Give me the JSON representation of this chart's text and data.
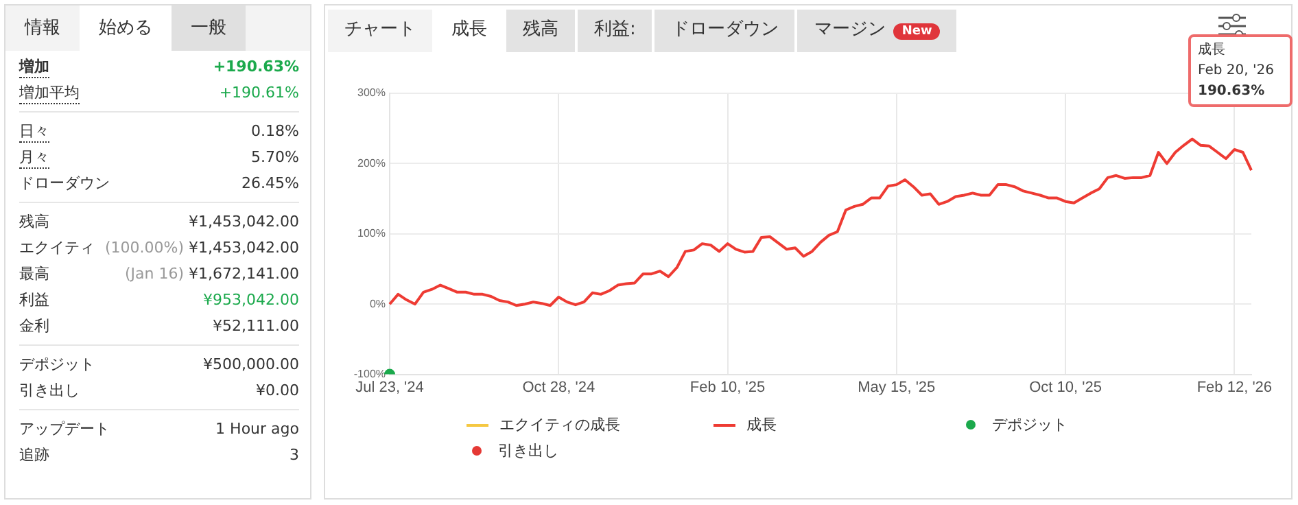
{
  "chart_data": [
    {
      "type": "other",
      "annotations": [
        "情報",
        "始める",
        "一般"
      ],
      "categories": [
        "増加",
        "増加平均",
        "日々",
        "月々",
        "ドローダウン",
        "残高",
        "エクイティ",
        "最高",
        "利益",
        "金利",
        "デポジット",
        "引き出し",
        "アップデート",
        "追跡"
      ],
      "value_labels": [
        "+190.63%",
        "+190.61%",
        "0.18%",
        "5.70%",
        "26.45%",
        "¥1,453,042.00",
        "(100.00%) ¥1,453,042.00",
        "(Jan 16) ¥1,672,141.00",
        "¥953,042.00",
        "¥52,111.00",
        "¥500,000.00",
        "¥0.00",
        "1 Hour ago",
        "3"
      ],
      "colors": [
        "#1ba94c",
        "#1ba94c",
        "#333333",
        "#333333",
        "#333333",
        "#333333",
        "#333333",
        "#333333",
        "#1ba94c",
        "#333333",
        "#333333",
        "#333333",
        "#333333",
        "#333333"
      ]
    },
    {
      "type": "other",
      "annotations": [
        "チャート",
        "成長",
        "残高",
        "利益:",
        "ドローダウン",
        "マージン",
        "New"
      ]
    },
    {
      "type": "line",
      "grid": true,
      "legend": "bottom",
      "annotations": [
        "成長",
        "Feb 20, '26",
        "190.63%"
      ],
      "categories": [
        "Jul 23, '24",
        null,
        null,
        null,
        null,
        null,
        null,
        null,
        null,
        null,
        null,
        null,
        null,
        null,
        null,
        null,
        null,
        null,
        null,
        null,
        "Oct 28, '24",
        null,
        null,
        null,
        null,
        null,
        null,
        null,
        null,
        null,
        null,
        null,
        null,
        null,
        null,
        null,
        null,
        null,
        null,
        null,
        "Feb 10, '25",
        null,
        null,
        null,
        null,
        null,
        null,
        null,
        null,
        null,
        null,
        null,
        null,
        null,
        null,
        null,
        null,
        null,
        null,
        null,
        "May 15, '25",
        null,
        null,
        null,
        null,
        null,
        null,
        null,
        null,
        null,
        null,
        null,
        null,
        null,
        null,
        null,
        null,
        null,
        null,
        null,
        "Oct 10, '25",
        null,
        null,
        null,
        null,
        null,
        null,
        null,
        null,
        null,
        null,
        null,
        null,
        null,
        null,
        null,
        null,
        null,
        null,
        null,
        "Feb 12, '26",
        null,
        null
      ],
      "ylim": [
        -100,
        300
      ],
      "yticks": [
        {
          "value": -100,
          "label": "-100%"
        },
        {
          "value": 0,
          "label": "0%"
        },
        {
          "value": 100,
          "label": "100%"
        },
        {
          "value": 200,
          "label": "200%"
        },
        {
          "value": 300,
          "label": "300%"
        }
      ],
      "series": [
        {
          "name": "エクイティの成長",
          "type": "line",
          "color": "#f5c842",
          "values": [
            null,
            null,
            null,
            null,
            null,
            null,
            null,
            null,
            null,
            null,
            null,
            null,
            null,
            null,
            null,
            null,
            null,
            null,
            null,
            null,
            null,
            null,
            null,
            null,
            null,
            null,
            null,
            null,
            null,
            null,
            null,
            null,
            null,
            null,
            null,
            null,
            null,
            null,
            null,
            null,
            null,
            null,
            null,
            null,
            null,
            null,
            null,
            null,
            null,
            null,
            null,
            null,
            null,
            null,
            null,
            null,
            null,
            null,
            null,
            null,
            null,
            null,
            null,
            null,
            null,
            null,
            null,
            null,
            null,
            null,
            null,
            null,
            null,
            null,
            null,
            null,
            null,
            null,
            null,
            null,
            null,
            null,
            null,
            null,
            null,
            null,
            null,
            null,
            null,
            null,
            null,
            null,
            null,
            null,
            null,
            null,
            null,
            null,
            null,
            null,
            null,
            null,
            null
          ]
        },
        {
          "name": "成長",
          "type": "line",
          "color": "#ee3b33",
          "values": [
            0,
            14,
            6,
            0,
            17,
            21,
            27,
            22,
            17,
            17,
            14,
            14,
            11,
            5,
            3,
            -2,
            0,
            3,
            1,
            -2,
            10,
            3,
            -1,
            3,
            16,
            14,
            19,
            27,
            29,
            30,
            43,
            43,
            47,
            39,
            52,
            75,
            77,
            86,
            84,
            75,
            86,
            78,
            74,
            75,
            95,
            96,
            87,
            78,
            80,
            68,
            75,
            88,
            98,
            103,
            134,
            139,
            142,
            151,
            151,
            168,
            170,
            177,
            167,
            155,
            157,
            142,
            146,
            153,
            155,
            158,
            155,
            155,
            170,
            170,
            167,
            161,
            158,
            155,
            151,
            151,
            146,
            144,
            151,
            158,
            164,
            180,
            183,
            179,
            180,
            180,
            183,
            216,
            200,
            216,
            226,
            235,
            226,
            225,
            216,
            207,
            220,
            216,
            190.6
          ]
        },
        {
          "name": "デポジット",
          "type": "scatter",
          "color": "#1ba94c",
          "values": [
            -100,
            null,
            null,
            null,
            null,
            null,
            null,
            null,
            null,
            null,
            null,
            null,
            null,
            null,
            null,
            null,
            null,
            null,
            null,
            null,
            null,
            null,
            null,
            null,
            null,
            null,
            null,
            null,
            null,
            null,
            null,
            null,
            null,
            null,
            null,
            null,
            null,
            null,
            null,
            null,
            null,
            null,
            null,
            null,
            null,
            null,
            null,
            null,
            null,
            null,
            null,
            null,
            null,
            null,
            null,
            null,
            null,
            null,
            null,
            null,
            null,
            null,
            null,
            null,
            null,
            null,
            null,
            null,
            null,
            null,
            null,
            null,
            null,
            null,
            null,
            null,
            null,
            null,
            null,
            null,
            null,
            null,
            null,
            null,
            null,
            null,
            null,
            null,
            null,
            null,
            null,
            null,
            null,
            null,
            null,
            null,
            null,
            null,
            null,
            null,
            null,
            null,
            null
          ]
        },
        {
          "name": "引き出し",
          "type": "scatter",
          "color": "#e53935",
          "values": [
            null,
            null,
            null,
            null,
            null,
            null,
            null,
            null,
            null,
            null,
            null,
            null,
            null,
            null,
            null,
            null,
            null,
            null,
            null,
            null,
            null,
            null,
            null,
            null,
            null,
            null,
            null,
            null,
            null,
            null,
            null,
            null,
            null,
            null,
            null,
            null,
            null,
            null,
            null,
            null,
            null,
            null,
            null,
            null,
            null,
            null,
            null,
            null,
            null,
            null,
            null,
            null,
            null,
            null,
            null,
            null,
            null,
            null,
            null,
            null,
            null,
            null,
            null,
            null,
            null,
            null,
            null,
            null,
            null,
            null,
            null,
            null,
            null,
            null,
            null,
            null,
            null,
            null,
            null,
            null,
            null,
            null,
            null,
            null,
            null,
            null,
            null,
            null,
            null,
            null,
            null,
            null,
            null,
            null,
            null,
            null,
            null,
            null,
            null,
            null,
            null,
            null,
            null
          ]
        }
      ]
    }
  ]
}
